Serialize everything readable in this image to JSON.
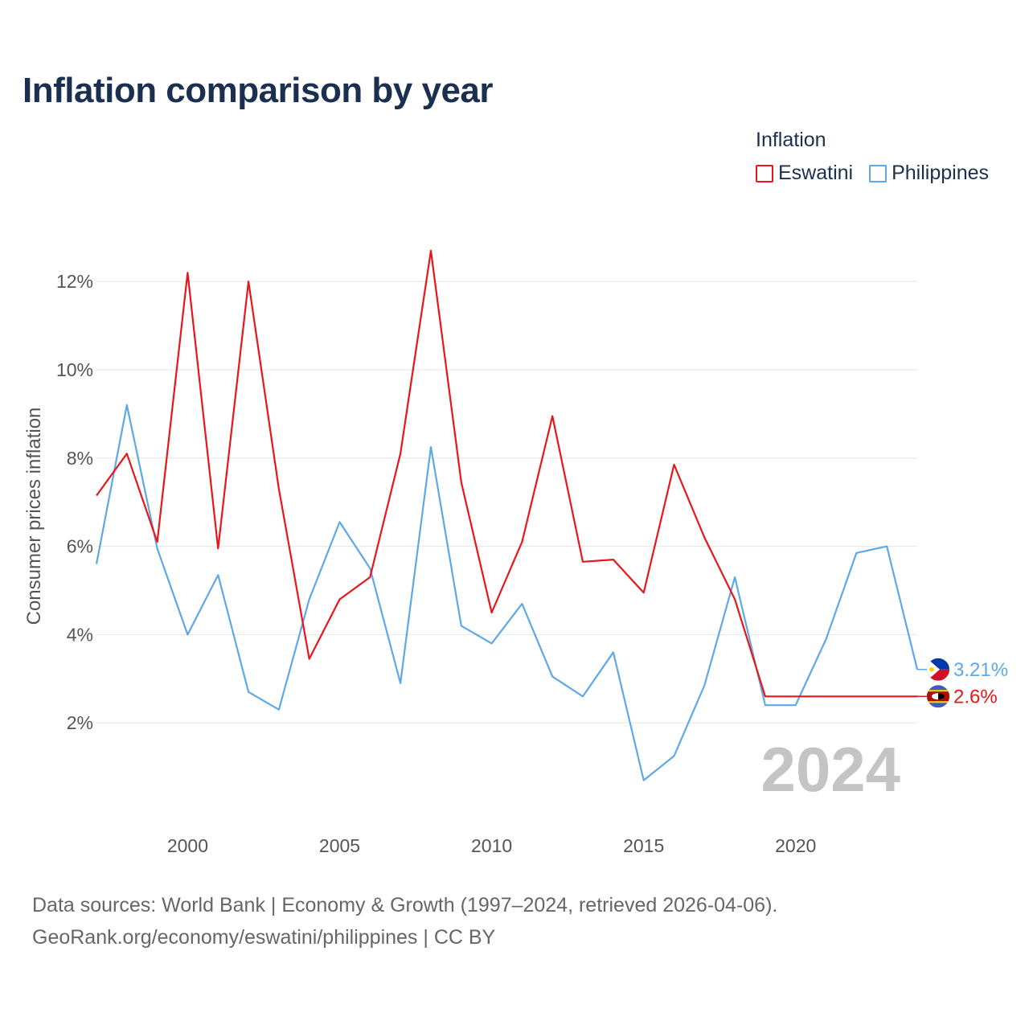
{
  "chart_data": {
    "type": "line",
    "title": "Inflation comparison by year",
    "ylabel": "Consumer prices inflation",
    "xlabel": "",
    "legend_title": "Inflation",
    "legend_position": "top-right",
    "x": [
      1997,
      1998,
      1999,
      2000,
      2001,
      2002,
      2003,
      2004,
      2005,
      2006,
      2007,
      2008,
      2009,
      2010,
      2011,
      2012,
      2013,
      2014,
      2015,
      2016,
      2017,
      2018,
      2019,
      2020,
      2021,
      2022,
      2023,
      2024
    ],
    "series": [
      {
        "name": "Eswatini",
        "color": "#e8161b",
        "end_label": "2.6%",
        "flag": "eswatini-flag-icon",
        "values": [
          7.15,
          8.1,
          6.1,
          12.2,
          5.95,
          12.0,
          7.3,
          3.45,
          4.8,
          5.3,
          8.1,
          12.7,
          7.45,
          4.5,
          6.1,
          8.95,
          5.65,
          5.7,
          4.95,
          7.85,
          6.2,
          4.8,
          2.6,
          2.6,
          2.6,
          2.6,
          2.6,
          2.6
        ]
      },
      {
        "name": "Philippines",
        "color": "#5ea8e6",
        "end_label": "3.21%",
        "flag": "philippines-flag-icon",
        "values": [
          5.6,
          9.2,
          5.95,
          4.0,
          5.35,
          2.7,
          2.3,
          4.8,
          6.55,
          5.5,
          2.9,
          8.25,
          4.2,
          3.8,
          4.7,
          3.05,
          2.6,
          3.6,
          0.7,
          1.25,
          2.85,
          5.3,
          2.4,
          2.4,
          3.9,
          5.85,
          6.0,
          3.21
        ]
      }
    ],
    "yticks": [
      2,
      4,
      6,
      8,
      10,
      12
    ],
    "ytick_labels": [
      "2%",
      "4%",
      "6%",
      "8%",
      "10%",
      "12%"
    ],
    "xticks": [
      2000,
      2005,
      2010,
      2015,
      2020
    ],
    "xtick_labels": [
      "2000",
      "2005",
      "2010",
      "2015",
      "2020"
    ],
    "ylim": [
      0,
      13.4
    ],
    "xlim": [
      1997,
      2024
    ],
    "grid": "horizontal",
    "current_year_label": "2024"
  },
  "footer": {
    "line1": "Data sources: World Bank | Economy & Growth (1997–2024, retrieved 2026-04-06).",
    "line2": "GeoRank.org/economy/eswatini/philippines | CC BY"
  }
}
